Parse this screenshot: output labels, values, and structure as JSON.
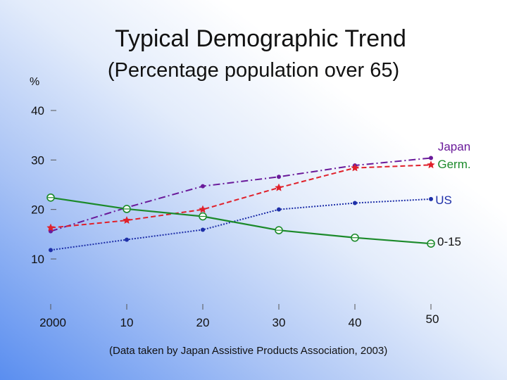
{
  "chart_data": {
    "type": "line",
    "title": "Typical Demographic Trend",
    "subtitle": "(Percentage population over 65)",
    "ylabel": "%",
    "source": "(Data taken by Japan Assistive Products Association, 2003)",
    "x": [
      2000,
      2010,
      2020,
      2030,
      2040,
      2050
    ],
    "x_tick_labels": [
      "2000",
      "10",
      "20",
      "30",
      "40",
      "50"
    ],
    "y_ticks": [
      10,
      20,
      30,
      40
    ],
    "ylim": [
      10,
      40
    ],
    "grid": false,
    "series": [
      {
        "name": "Japan",
        "color": "#6a1a9a",
        "style": "dashdot",
        "marker": "dot",
        "values": [
          15.6,
          20.4,
          24.7,
          26.6,
          28.9,
          30.4
        ]
      },
      {
        "name": "Germ.",
        "color": "#e0202a",
        "style": "dashed",
        "marker": "star",
        "values": [
          16.3,
          17.8,
          20.0,
          24.4,
          28.4,
          29.0
        ]
      },
      {
        "name": "US",
        "color": "#1e2fa8",
        "style": "dotted",
        "marker": "dot",
        "values": [
          11.8,
          13.9,
          15.9,
          20.0,
          21.3,
          22.1
        ]
      },
      {
        "name": "0-15",
        "color": "#1b8a2a",
        "style": "solid",
        "marker": "circle",
        "values": [
          22.4,
          20.1,
          18.6,
          15.8,
          14.3,
          13.1
        ]
      }
    ]
  }
}
